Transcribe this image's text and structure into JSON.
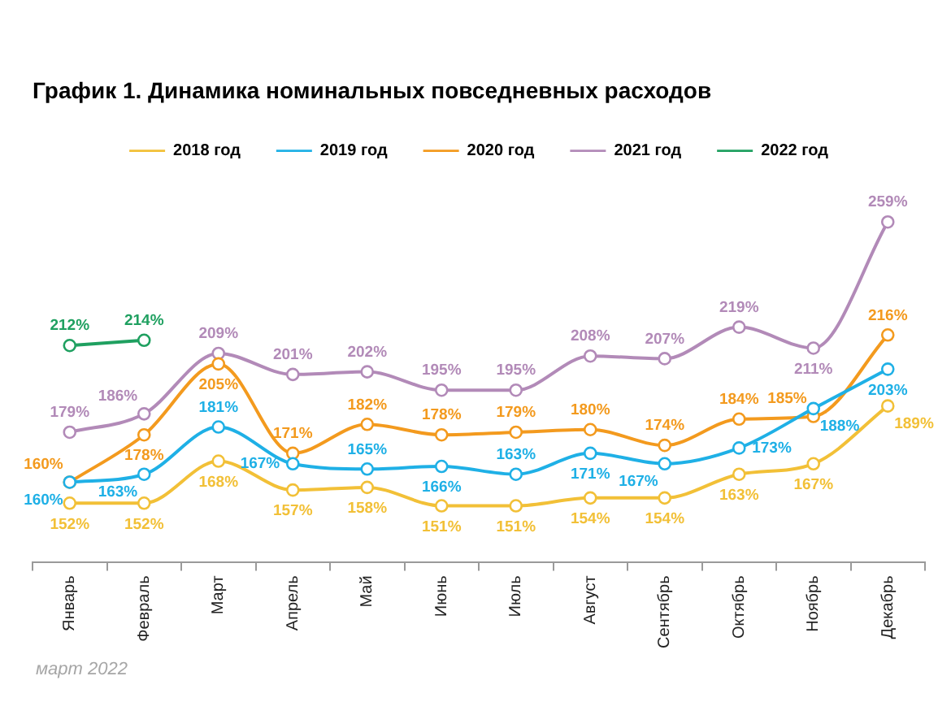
{
  "chart_data": {
    "type": "line",
    "title": "График 1. Динамика номинальных повседневных расходов",
    "categories": [
      "Январь",
      "Февраль",
      "Март",
      "Апрель",
      "Май",
      "Июнь",
      "Июль",
      "Август",
      "Сентябрь",
      "Октябрь",
      "Ноябрь",
      "Декабрь"
    ],
    "series": [
      {
        "name": "2018 год",
        "color": "#f2c037",
        "values": [
          152,
          152,
          168,
          157,
          158,
          151,
          151,
          154,
          154,
          163,
          167,
          189
        ],
        "value_labels": [
          "152%",
          "152%",
          "168%",
          "157%",
          "158%",
          "151%",
          "151%",
          "154%",
          "154%",
          "163%",
          "167%",
          "189%"
        ]
      },
      {
        "name": "2019 год",
        "color": "#1fb0e6",
        "values": [
          160,
          163,
          181,
          167,
          165,
          166,
          163,
          171,
          167,
          173,
          188,
          203
        ],
        "value_labels": [
          "160%",
          "163%",
          "181%",
          "167%",
          "165%",
          "166%",
          "163%",
          "171%",
          "167%",
          "173%",
          "188%",
          "203%"
        ]
      },
      {
        "name": "2020 год",
        "color": "#f39a1e",
        "values": [
          160,
          178,
          205,
          171,
          182,
          178,
          179,
          180,
          174,
          184,
          185,
          216
        ],
        "value_labels": [
          "160%",
          "178%",
          "205%",
          "171%",
          "182%",
          "178%",
          "179%",
          "180%",
          "174%",
          "184%",
          "185%",
          "216%"
        ]
      },
      {
        "name": "2021 год",
        "color": "#b28ab8",
        "values": [
          179,
          186,
          209,
          201,
          202,
          195,
          195,
          208,
          207,
          219,
          211,
          259
        ],
        "value_labels": [
          "179%",
          "186%",
          "209%",
          "201%",
          "202%",
          "195%",
          "195%",
          "208%",
          "207%",
          "219%",
          "211%",
          "259%"
        ]
      },
      {
        "name": "2022 год",
        "color": "#1fa060",
        "values": [
          212,
          214,
          null,
          null,
          null,
          null,
          null,
          null,
          null,
          null,
          null,
          null
        ],
        "value_labels": [
          "212%",
          "214%",
          null,
          null,
          null,
          null,
          null,
          null,
          null,
          null,
          null,
          null
        ]
      }
    ],
    "tick_labels": "x",
    "legend": "top",
    "marker": "circle",
    "annotations": [
      "март 2022"
    ]
  }
}
